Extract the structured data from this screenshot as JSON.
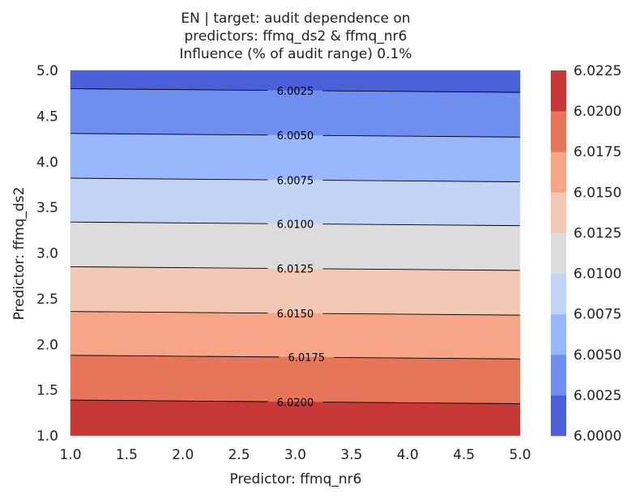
{
  "chart_data": {
    "type": "contour",
    "title_lines": [
      "EN | target: audit dependence on",
      "predictors: ffmq_ds2 & ffmq_nr6",
      "Influence (% of audit range) 0.1%"
    ],
    "xlabel": "Predictor: ffmq_nr6",
    "ylabel": "Predictor: ffmq_ds2",
    "xlim": [
      1.0,
      5.0
    ],
    "ylim": [
      1.0,
      5.0
    ],
    "x_ticks": [
      "1.0",
      "1.5",
      "2.0",
      "2.5",
      "3.0",
      "3.5",
      "4.0",
      "4.5",
      "5.0"
    ],
    "y_ticks": [
      "1.0",
      "1.5",
      "2.0",
      "2.5",
      "3.0",
      "3.5",
      "4.0",
      "4.5",
      "5.0"
    ],
    "colormap": "coolwarm",
    "levels": [
      6.0,
      6.0025,
      6.005,
      6.0075,
      6.01,
      6.0125,
      6.015,
      6.0175,
      6.02,
      6.0225
    ],
    "level_colors": [
      "#4a5fd8",
      "#6e8ef0",
      "#99b7fc",
      "#c1d4f4",
      "#dcdcdc",
      "#f2c9b4",
      "#f6a687",
      "#e77559",
      "#c83836"
    ],
    "contours": [
      {
        "value": 6.0025,
        "label": "6.0025",
        "y_at_x1": 4.8,
        "y_at_x5": 4.76,
        "label_x": 3.0
      },
      {
        "value": 6.005,
        "label": "6.0050",
        "y_at_x1": 4.31,
        "y_at_x5": 4.27,
        "label_x": 3.0
      },
      {
        "value": 6.0075,
        "label": "6.0075",
        "y_at_x1": 3.82,
        "y_at_x5": 3.78,
        "label_x": 3.0
      },
      {
        "value": 6.01,
        "label": "6.0100",
        "y_at_x1": 3.34,
        "y_at_x5": 3.3,
        "label_x": 3.0
      },
      {
        "value": 6.0125,
        "label": "6.0125",
        "y_at_x1": 2.85,
        "y_at_x5": 2.81,
        "label_x": 3.0
      },
      {
        "value": 6.015,
        "label": "6.0150",
        "y_at_x1": 2.36,
        "y_at_x5": 2.32,
        "label_x": 3.0
      },
      {
        "value": 6.0175,
        "label": "6.0175",
        "y_at_x1": 1.88,
        "y_at_x5": 1.84,
        "label_x": 3.1
      },
      {
        "value": 6.02,
        "label": "6.0200",
        "y_at_x1": 1.39,
        "y_at_x5": 1.35,
        "label_x": 3.0
      }
    ],
    "colorbar_ticks": [
      "6.0000",
      "6.0025",
      "6.0050",
      "6.0075",
      "6.0100",
      "6.0125",
      "6.0150",
      "6.0175",
      "6.0200",
      "6.0225"
    ]
  }
}
